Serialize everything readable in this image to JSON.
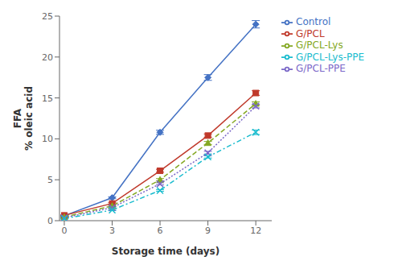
{
  "chart_data": {
    "type": "line",
    "xlabel": "Storage time (days)",
    "ylabel": "FFA\n% oleic acid",
    "x": [
      0,
      3,
      6,
      9,
      12
    ],
    "series": [
      {
        "name": "Control",
        "color": "#4472c4",
        "marker": "diamond",
        "line_style": "solid",
        "values": [
          0.6,
          2.8,
          10.8,
          17.5,
          24.0
        ],
        "yerr": [
          0.05,
          0.12,
          0.25,
          0.35,
          0.45
        ]
      },
      {
        "name": "G/PCL",
        "color": "#c0392b",
        "marker": "square",
        "line_style": "solid",
        "values": [
          0.65,
          2.1,
          6.1,
          10.4,
          15.6
        ],
        "yerr": [
          0.05,
          0.1,
          0.18,
          0.2,
          0.28
        ]
      },
      {
        "name": "G/PCL-Lys",
        "color": "#84a822",
        "marker": "triangle",
        "line_style": "dashed",
        "values": [
          0.45,
          1.8,
          5.0,
          9.5,
          14.3
        ],
        "yerr": [
          0.04,
          0.08,
          0.14,
          0.18,
          0.22
        ]
      },
      {
        "name": "G/PCL-PPE",
        "color": "#7b68c8",
        "marker": "x",
        "line_style": "dotted",
        "values": [
          0.35,
          1.6,
          4.5,
          8.3,
          14.0
        ],
        "yerr": [
          0.04,
          0.08,
          0.13,
          0.17,
          0.22
        ]
      },
      {
        "name": "G/PCL-Lys-PPE",
        "color": "#1abcce",
        "marker": "x",
        "line_style": "dashdot",
        "values": [
          0.25,
          1.3,
          3.7,
          7.8,
          10.8
        ],
        "yerr": [
          0.04,
          0.07,
          0.1,
          0.14,
          0.28
        ]
      }
    ],
    "xlim": [
      -0.3,
      13.0
    ],
    "ylim": [
      0,
      25
    ],
    "xticks": [
      0,
      3,
      6,
      9,
      12
    ],
    "yticks": [
      0,
      5,
      10,
      15,
      20,
      25
    ],
    "grid": false,
    "legend": "right"
  }
}
